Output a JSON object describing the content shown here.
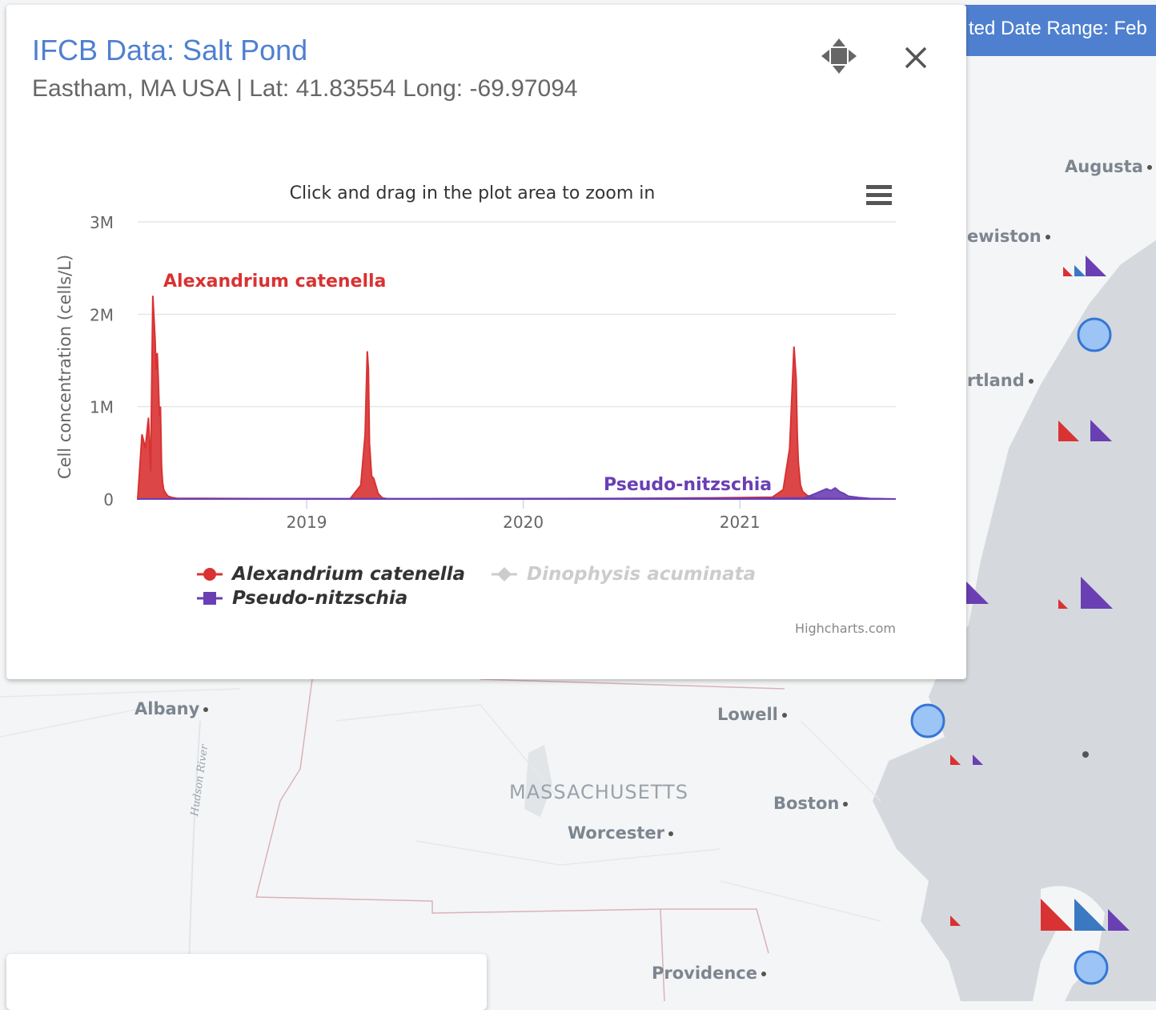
{
  "map": {
    "cities": [
      "Augusta",
      "ewiston",
      "rtland",
      "Albany",
      "Lowell",
      "Boston",
      "Worcester",
      "Providence"
    ],
    "state_label": "MASSACHUSETTS",
    "river_label": "Hudson River"
  },
  "date_range_label": "ted Date Range: Feb",
  "panel": {
    "title": "IFCB Data: Salt Pond",
    "subtitle": "Eastham, MA USA | Lat: 41.83554 Long: -69.97094",
    "move_icon": "move-arrows-icon",
    "close_icon": "close-icon"
  },
  "chart_data": {
    "type": "area",
    "subtitle": "Click and drag in the plot area to zoom in",
    "ylabel": "Cell concentration (cells/L)",
    "y_ticks": [
      "0",
      "1M",
      "2M",
      "3M"
    ],
    "ylim": [
      0,
      3000000
    ],
    "x_ticks": [
      "2019",
      "2020",
      "2021"
    ],
    "xlim": [
      2018.22,
      2021.72
    ],
    "grid": true,
    "legend_position": "bottom",
    "credit": "Highcharts.com",
    "menu_icon": "hamburger-menu-icon",
    "series": [
      {
        "name": "Alexandrium catenella",
        "color": "#d93232",
        "visible": true,
        "annotation": "Alexandrium catenella",
        "x": [
          2018.22,
          2018.24,
          2018.255,
          2018.27,
          2018.28,
          2018.29,
          2018.3,
          2018.305,
          2018.31,
          2018.315,
          2018.32,
          2018.325,
          2018.33,
          2018.335,
          2018.34,
          2018.35,
          2018.36,
          2018.38,
          2018.4,
          2019.2,
          2019.25,
          2019.27,
          2019.28,
          2019.285,
          2019.29,
          2019.3,
          2019.31,
          2019.33,
          2019.35,
          2019.38,
          2020.5,
          2020.8,
          2021.0,
          2021.15,
          2021.2,
          2021.23,
          2021.25,
          2021.26,
          2021.265,
          2021.27,
          2021.28,
          2021.29,
          2021.31,
          2021.33,
          2021.36,
          2021.7
        ],
        "values": [
          0,
          700000,
          550000,
          880000,
          300000,
          2200000,
          1750000,
          1400000,
          1580000,
          1300000,
          900000,
          1000000,
          350000,
          180000,
          100000,
          60000,
          30000,
          15000,
          8000,
          0,
          150000,
          700000,
          1600000,
          1400000,
          600000,
          250000,
          220000,
          60000,
          10000,
          0,
          5000,
          10000,
          15000,
          20000,
          100000,
          550000,
          1650000,
          1300000,
          700000,
          400000,
          150000,
          80000,
          40000,
          20000,
          5000,
          0
        ]
      },
      {
        "name": "Dinophysis acuminata",
        "color": "#cccccc",
        "visible": false
      },
      {
        "name": "Pseudo-nitzschia",
        "color": "#6a3fb4",
        "visible": true,
        "annotation": "Pseudo-nitzschia",
        "x": [
          2018.22,
          2018.4,
          2020.4,
          2021.1,
          2021.3,
          2021.35,
          2021.4,
          2021.42,
          2021.44,
          2021.46,
          2021.48,
          2021.5,
          2021.55,
          2021.6,
          2021.72
        ],
        "values": [
          0,
          2000,
          5000,
          8000,
          12000,
          60000,
          110000,
          90000,
          120000,
          80000,
          60000,
          30000,
          15000,
          5000,
          0
        ]
      }
    ]
  }
}
